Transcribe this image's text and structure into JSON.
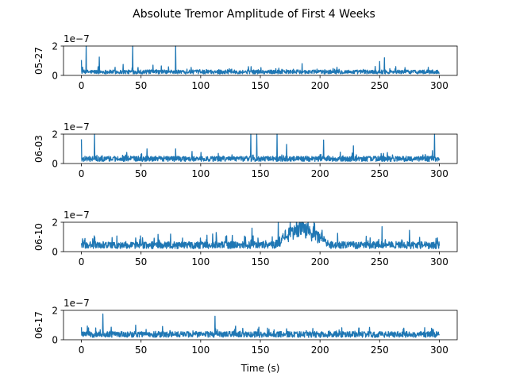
{
  "chart_data": {
    "type": "line",
    "title": "Absolute Tremor Amplitude of First 4 Weeks",
    "xlabel": "Time (s)",
    "xlim": [
      -15,
      315
    ],
    "x_ticks": [
      0,
      50,
      100,
      150,
      200,
      250,
      300
    ],
    "ylim": [
      0,
      2
    ],
    "y_ticks": [
      0,
      2
    ],
    "y_scale_label": "1e−7",
    "line_color": "#1f77b4",
    "grid": false,
    "panels": [
      {
        "ylabel": "05-27",
        "baseline": 0.3,
        "spikes": [
          {
            "x": 0,
            "y": 1.05
          },
          {
            "x": 4,
            "y": 2.0
          },
          {
            "x": 15,
            "y": 1.25
          },
          {
            "x": 35,
            "y": 0.75
          },
          {
            "x": 43,
            "y": 2.0
          },
          {
            "x": 60,
            "y": 0.7
          },
          {
            "x": 79,
            "y": 2.0
          },
          {
            "x": 140,
            "y": 0.6
          },
          {
            "x": 185,
            "y": 0.8
          },
          {
            "x": 250,
            "y": 0.95
          },
          {
            "x": 254,
            "y": 1.2
          }
        ]
      },
      {
        "ylabel": "06-03",
        "baseline": 0.4,
        "spikes": [
          {
            "x": 0,
            "y": 1.65
          },
          {
            "x": 11,
            "y": 2.0
          },
          {
            "x": 55,
            "y": 1.0
          },
          {
            "x": 79,
            "y": 1.0
          },
          {
            "x": 142,
            "y": 2.0
          },
          {
            "x": 147,
            "y": 2.0
          },
          {
            "x": 164,
            "y": 2.0
          },
          {
            "x": 172,
            "y": 1.3
          },
          {
            "x": 203,
            "y": 1.6
          },
          {
            "x": 228,
            "y": 1.2
          },
          {
            "x": 296,
            "y": 2.0
          }
        ]
      },
      {
        "ylabel": "06-10",
        "baseline": 0.55,
        "spikes": [
          {
            "x": 110,
            "y": 1.2
          },
          {
            "x": 113,
            "y": 1.3
          },
          {
            "x": 143,
            "y": 1.6
          },
          {
            "x": 165,
            "y": 2.0
          },
          {
            "x": 175,
            "y": 2.0
          },
          {
            "x": 185,
            "y": 2.0
          },
          {
            "x": 195,
            "y": 2.0
          },
          {
            "x": 252,
            "y": 1.7
          },
          {
            "x": 275,
            "y": 1.45
          }
        ]
      },
      {
        "ylabel": "06-17",
        "baseline": 0.45,
        "spikes": [
          {
            "x": 0,
            "y": 0.85
          },
          {
            "x": 12,
            "y": 0.8
          },
          {
            "x": 18,
            "y": 1.75
          },
          {
            "x": 112,
            "y": 1.6
          },
          {
            "x": 172,
            "y": 0.75
          },
          {
            "x": 295,
            "y": 0.7
          }
        ]
      }
    ]
  }
}
